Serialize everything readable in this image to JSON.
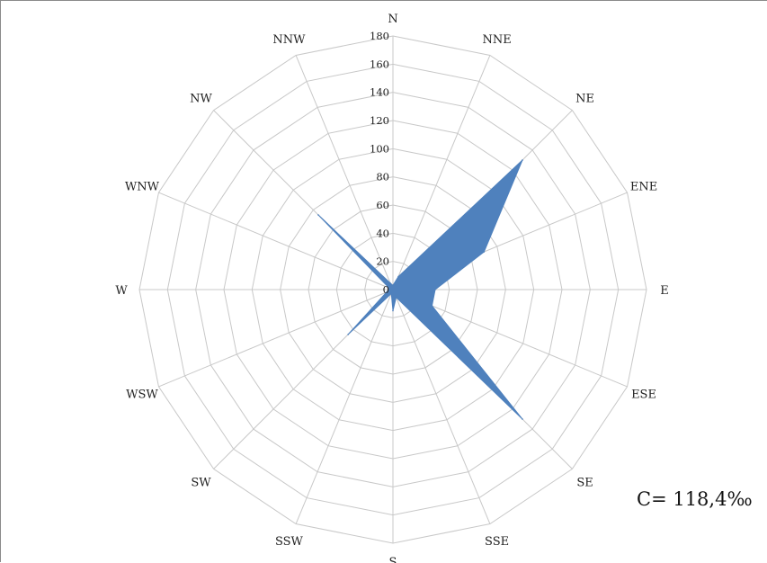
{
  "chart_data": {
    "type": "radar",
    "directions": [
      "N",
      "NNE",
      "NE",
      "ENE",
      "E",
      "ESE",
      "SE",
      "SSE",
      "S",
      "SSW",
      "SW",
      "WSW",
      "W",
      "WNW",
      "NW",
      "NNW"
    ],
    "values": [
      3,
      10,
      130,
      70,
      30,
      30,
      130,
      6,
      15,
      3,
      45,
      5,
      3,
      3,
      75,
      5
    ],
    "r_range": [
      0,
      180
    ],
    "r_ticks": [
      0,
      20,
      40,
      60,
      80,
      100,
      120,
      140,
      160,
      180
    ],
    "grid": true,
    "series_color": "#4f81bd",
    "grid_color": "#c8c8c8"
  },
  "annotation": {
    "calm": "C= 118,4‰"
  }
}
